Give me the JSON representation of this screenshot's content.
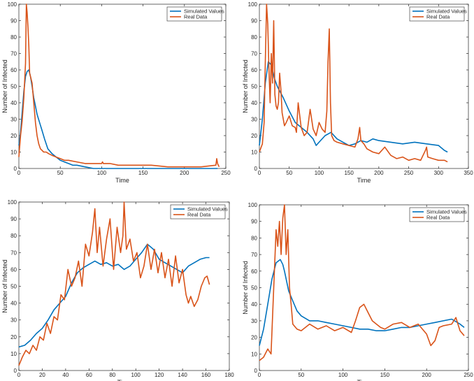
{
  "colors": {
    "simulated": "#0072BD",
    "real": "#D95319",
    "axis": "#262626"
  },
  "chart_data": [
    {
      "type": "line",
      "xlabel": "Time",
      "ylabel": "Number of Infected",
      "xlim": [
        0,
        250
      ],
      "ylim": [
        0,
        100
      ],
      "xticks": [
        0,
        50,
        100,
        150,
        200,
        250
      ],
      "yticks": [
        0,
        10,
        20,
        30,
        40,
        50,
        60,
        70,
        80,
        90,
        100
      ],
      "legend_position": "top-right",
      "grid": false,
      "series": [
        {
          "name": "Simulated Values",
          "color": "#0072BD",
          "x": [
            0,
            2,
            4,
            6,
            8,
            10,
            12,
            14,
            16,
            18,
            20,
            22,
            25,
            28,
            31,
            35,
            40,
            45,
            50,
            55,
            60,
            65,
            70,
            80,
            90,
            100,
            120,
            150,
            180,
            210,
            240
          ],
          "y": [
            14,
            22,
            34,
            47,
            56,
            59,
            60,
            56,
            50,
            43,
            38,
            33,
            28,
            23,
            18,
            12,
            9,
            7,
            5,
            4,
            3,
            2,
            2,
            1,
            0,
            0,
            0,
            0,
            0,
            0,
            0
          ]
        },
        {
          "name": "Real Data",
          "color": "#D95319",
          "x": [
            0,
            2,
            4,
            6,
            8,
            9,
            10,
            11,
            12,
            13,
            14,
            16,
            18,
            20,
            22,
            24,
            26,
            28,
            30,
            33,
            36,
            40,
            45,
            50,
            55,
            60,
            70,
            80,
            90,
            100,
            101,
            102,
            110,
            120,
            140,
            160,
            180,
            200,
            220,
            238,
            239,
            240,
            241,
            242
          ],
          "y": [
            7,
            20,
            29,
            43,
            64,
            100,
            95,
            86,
            75,
            58,
            56,
            52,
            40,
            28,
            20,
            15,
            12,
            11,
            10,
            10,
            9,
            8,
            7,
            6,
            5,
            5,
            4,
            3,
            3,
            3,
            4,
            3,
            3,
            2,
            2,
            2,
            1,
            1,
            1,
            2,
            6,
            3,
            2,
            1
          ]
        }
      ]
    },
    {
      "type": "line",
      "xlabel": "Time",
      "ylabel": "Number of Infected",
      "xlim": [
        0,
        350
      ],
      "ylim": [
        0,
        100
      ],
      "xticks": [
        0,
        50,
        100,
        150,
        200,
        250,
        300,
        350
      ],
      "yticks": [
        0,
        10,
        20,
        30,
        40,
        50,
        60,
        70,
        80,
        90,
        100
      ],
      "legend_position": "top-right",
      "grid": false,
      "series": [
        {
          "name": "Simulated Values",
          "color": "#0072BD",
          "x": [
            0,
            5,
            10,
            15,
            20,
            25,
            30,
            40,
            50,
            60,
            70,
            80,
            90,
            95,
            100,
            110,
            120,
            130,
            140,
            150,
            160,
            170,
            180,
            190,
            200,
            220,
            240,
            260,
            280,
            300,
            310,
            315
          ],
          "y": [
            14,
            30,
            52,
            65,
            63,
            55,
            50,
            43,
            35,
            28,
            25,
            22,
            18,
            14,
            16,
            20,
            22,
            18,
            16,
            14,
            15,
            17,
            16,
            18,
            17,
            16,
            15,
            16,
            15,
            14,
            11,
            10
          ]
        },
        {
          "name": "Real Data",
          "color": "#D95319",
          "x": [
            0,
            5,
            8,
            10,
            12,
            14,
            16,
            18,
            20,
            22,
            24,
            26,
            28,
            30,
            32,
            34,
            36,
            38,
            40,
            42,
            45,
            50,
            55,
            60,
            62,
            65,
            70,
            75,
            80,
            85,
            90,
            95,
            100,
            105,
            110,
            113,
            115,
            117,
            119,
            121,
            125,
            130,
            140,
            150,
            160,
            165,
            168,
            170,
            175,
            180,
            190,
            200,
            210,
            220,
            230,
            240,
            250,
            260,
            270,
            278,
            280,
            282,
            290,
            300,
            310,
            315
          ],
          "y": [
            10,
            15,
            28,
            65,
            100,
            88,
            60,
            40,
            70,
            52,
            90,
            45,
            38,
            36,
            40,
            58,
            48,
            34,
            30,
            26,
            28,
            32,
            26,
            25,
            22,
            40,
            25,
            20,
            22,
            36,
            24,
            20,
            28,
            24,
            22,
            35,
            65,
            85,
            40,
            20,
            17,
            16,
            15,
            14,
            13,
            18,
            25,
            17,
            15,
            12,
            10,
            9,
            13,
            8,
            6,
            7,
            5,
            6,
            5,
            11,
            13,
            7,
            6,
            5,
            5,
            4
          ]
        }
      ]
    },
    {
      "type": "line",
      "xlabel": "Time",
      "ylabel": "Number of Infected",
      "xlim": [
        0,
        180
      ],
      "ylim": [
        0,
        100
      ],
      "xticks": [
        0,
        20,
        40,
        60,
        80,
        100,
        120,
        140,
        160,
        180
      ],
      "yticks": [
        0,
        10,
        20,
        30,
        40,
        50,
        60,
        70,
        80,
        90,
        100
      ],
      "legend_position": "top-right",
      "grid": false,
      "series": [
        {
          "name": "Simulated Values",
          "color": "#0072BD",
          "x": [
            0,
            5,
            10,
            15,
            20,
            25,
            30,
            35,
            40,
            45,
            50,
            55,
            60,
            65,
            70,
            75,
            80,
            85,
            90,
            95,
            100,
            105,
            110,
            115,
            120,
            125,
            130,
            135,
            140,
            145,
            150,
            155,
            160,
            163
          ],
          "y": [
            14,
            15,
            18,
            22,
            25,
            30,
            36,
            40,
            44,
            52,
            58,
            61,
            63,
            65,
            63,
            64,
            62,
            63,
            60,
            62,
            66,
            70,
            75,
            72,
            66,
            64,
            62,
            60,
            58,
            62,
            64,
            66,
            67,
            67
          ]
        },
        {
          "name": "Real Data",
          "color": "#D95319",
          "x": [
            0,
            3,
            6,
            9,
            12,
            15,
            18,
            21,
            24,
            27,
            30,
            33,
            36,
            39,
            42,
            45,
            48,
            51,
            54,
            57,
            60,
            63,
            65,
            67,
            69,
            72,
            75,
            78,
            81,
            84,
            87,
            89,
            90,
            92,
            95,
            98,
            101,
            104,
            107,
            110,
            113,
            116,
            119,
            122,
            125,
            128,
            131,
            134,
            137,
            140,
            143,
            145,
            147,
            150,
            153,
            156,
            159,
            161,
            163
          ],
          "y": [
            3,
            8,
            12,
            10,
            15,
            12,
            20,
            18,
            28,
            22,
            32,
            30,
            45,
            42,
            60,
            50,
            55,
            65,
            50,
            75,
            68,
            82,
            96,
            70,
            85,
            62,
            78,
            90,
            60,
            85,
            70,
            80,
            100,
            72,
            78,
            65,
            70,
            55,
            62,
            75,
            60,
            72,
            58,
            70,
            55,
            66,
            50,
            68,
            52,
            60,
            45,
            40,
            44,
            38,
            42,
            50,
            55,
            56,
            51
          ]
        }
      ]
    },
    {
      "type": "line",
      "xlabel": "Time",
      "ylabel": "Number of Infected",
      "xlim": [
        0,
        250
      ],
      "ylim": [
        0,
        100
      ],
      "xticks": [
        0,
        50,
        100,
        150,
        200,
        250
      ],
      "yticks": [
        0,
        10,
        20,
        30,
        40,
        50,
        60,
        70,
        80,
        90,
        100
      ],
      "legend_position": "top-right",
      "grid": false,
      "series": [
        {
          "name": "Simulated Values",
          "color": "#0072BD",
          "x": [
            0,
            5,
            10,
            15,
            20,
            25,
            28,
            30,
            35,
            40,
            45,
            50,
            60,
            70,
            80,
            90,
            100,
            110,
            120,
            130,
            140,
            150,
            160,
            170,
            180,
            190,
            200,
            210,
            220,
            230,
            240,
            245
          ],
          "y": [
            15,
            25,
            40,
            55,
            65,
            67,
            64,
            60,
            48,
            42,
            36,
            33,
            30,
            30,
            29,
            28,
            27,
            26,
            25,
            25,
            24,
            24,
            25,
            26,
            26,
            27,
            28,
            29,
            30,
            31,
            28,
            26
          ]
        },
        {
          "name": "Real Data",
          "color": "#D95319",
          "x": [
            0,
            5,
            10,
            14,
            16,
            18,
            20,
            22,
            24,
            26,
            28,
            30,
            32,
            34,
            36,
            38,
            40,
            45,
            50,
            55,
            60,
            70,
            80,
            90,
            100,
            110,
            115,
            120,
            125,
            130,
            135,
            140,
            145,
            150,
            160,
            170,
            180,
            190,
            200,
            205,
            210,
            215,
            220,
            230,
            235,
            240,
            245
          ],
          "y": [
            6,
            8,
            13,
            10,
            35,
            60,
            85,
            75,
            90,
            70,
            92,
            100,
            70,
            85,
            50,
            40,
            28,
            25,
            24,
            26,
            28,
            25,
            27,
            24,
            26,
            23,
            30,
            38,
            40,
            35,
            30,
            28,
            26,
            25,
            28,
            29,
            26,
            28,
            22,
            15,
            18,
            26,
            27,
            28,
            32,
            24,
            21
          ]
        }
      ]
    }
  ]
}
